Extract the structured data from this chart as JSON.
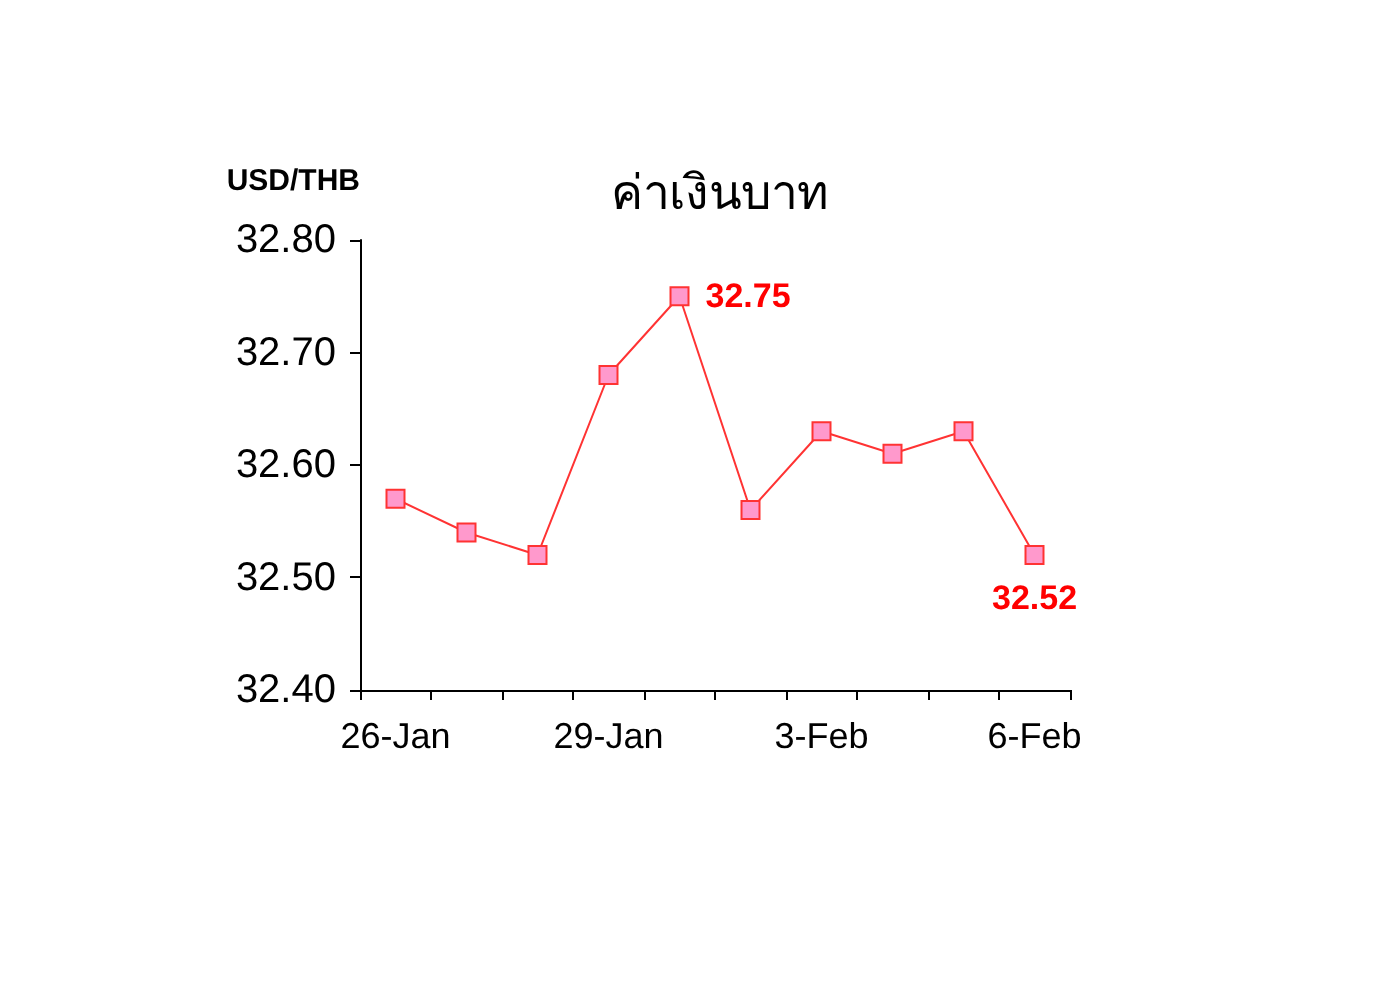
{
  "chart_data": {
    "type": "line",
    "title": "ค่าเงินบาท",
    "ylabel": "USD/THB",
    "categories": [
      "26-Jan",
      null,
      null,
      "29-Jan",
      null,
      null,
      "3-Feb",
      null,
      null,
      "6-Feb"
    ],
    "series": [
      {
        "color": "#ff3333",
        "values": [
          32.57,
          32.54,
          32.52,
          32.68,
          32.75,
          32.56,
          32.63,
          32.61,
          32.63,
          32.52
        ],
        "value_labels": [
          null,
          null,
          null,
          null,
          "32.75",
          null,
          null,
          null,
          null,
          "32.52"
        ]
      }
    ],
    "ylim": [
      32.4,
      32.8
    ],
    "yticks": [
      {
        "value": 32.4,
        "label": "32.40"
      },
      {
        "value": 32.5,
        "label": "32.50"
      },
      {
        "value": 32.6,
        "label": "32.60"
      },
      {
        "value": 32.7,
        "label": "32.70"
      },
      {
        "value": 32.8,
        "label": "32.80"
      }
    ],
    "grid": false,
    "marker": "square",
    "line_style": "solid"
  }
}
